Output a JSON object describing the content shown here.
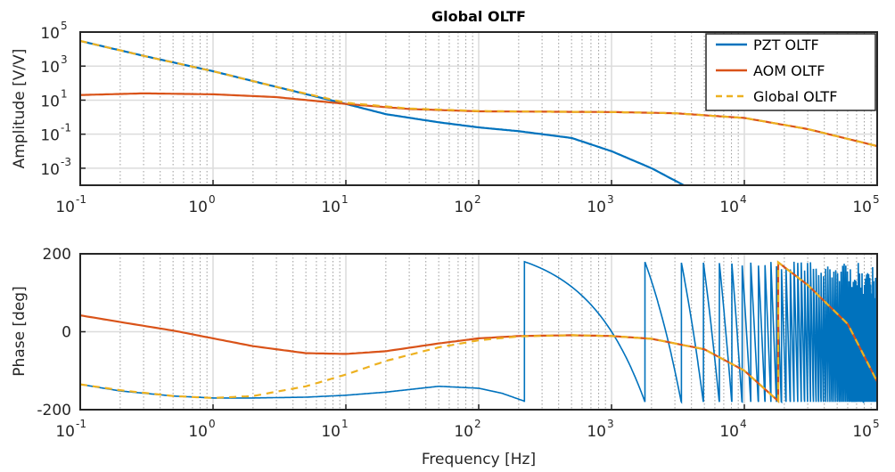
{
  "title": "Global OLTF",
  "colors": {
    "pzt": "#0072BD",
    "aom": "#D95319",
    "global": "#EDB120",
    "grid_major": "#dcdcdc",
    "grid_minor": "#9a9a9a",
    "axis": "#262626"
  },
  "chart_data": [
    {
      "type": "line",
      "name_panel": "amplitude",
      "title": "Global OLTF",
      "ylabel": "Amplitude [V/V]",
      "xlabel": "",
      "xscale": "log",
      "yscale": "log",
      "xlim": [
        0.1,
        100000
      ],
      "ylim": [
        0.0001,
        100000
      ],
      "xticks": [
        {
          "base": "10",
          "exp": "-1"
        },
        {
          "base": "10",
          "exp": "0"
        },
        {
          "base": "10",
          "exp": "1"
        },
        {
          "base": "10",
          "exp": "2"
        },
        {
          "base": "10",
          "exp": "3"
        },
        {
          "base": "10",
          "exp": "4"
        },
        {
          "base": "10",
          "exp": "5"
        }
      ],
      "yticks": [
        {
          "base": "10",
          "exp": "-3"
        },
        {
          "base": "10",
          "exp": "-1"
        },
        {
          "base": "10",
          "exp": "1"
        },
        {
          "base": "10",
          "exp": "3"
        },
        {
          "base": "10",
          "exp": "5"
        }
      ],
      "grid": true,
      "legend": {
        "placement": "top-right",
        "entries": [
          "PZT OLTF",
          "AOM OLTF",
          "Global OLTF"
        ]
      },
      "series": [
        {
          "name": "PZT OLTF",
          "style": "solid",
          "x": [
            0.1,
            0.3,
            1,
            3,
            10,
            20,
            50,
            100,
            200,
            500,
            1000,
            2000,
            3500
          ],
          "y": [
            30000,
            4000,
            500,
            60,
            6,
            1.5,
            0.5,
            0.25,
            0.15,
            0.06,
            0.01,
            0.001,
            0.0001
          ]
        },
        {
          "name": "AOM OLTF",
          "style": "solid",
          "x": [
            0.1,
            0.3,
            1,
            3,
            10,
            30,
            100,
            300,
            1000,
            3000,
            10000,
            30000,
            100000
          ],
          "y": [
            20,
            25,
            22,
            15,
            6,
            3,
            2.2,
            2.1,
            2,
            1.7,
            0.9,
            0.2,
            0.02
          ]
        },
        {
          "name": "Global OLTF",
          "style": "dashed",
          "x": [
            0.1,
            0.3,
            1,
            3,
            10,
            30,
            100,
            300,
            1000,
            3000,
            10000,
            30000,
            100000
          ],
          "y": [
            30000,
            4000,
            500,
            60,
            7,
            3.2,
            2.3,
            2.1,
            2,
            1.7,
            0.9,
            0.2,
            0.02
          ]
        }
      ]
    },
    {
      "type": "line",
      "name_panel": "phase",
      "title": "",
      "ylabel": "Phase [deg]",
      "xlabel": "Frequency [Hz]",
      "xscale": "log",
      "yscale": "linear",
      "xlim": [
        0.1,
        100000
      ],
      "ylim": [
        -200,
        200
      ],
      "xticks": [
        {
          "base": "10",
          "exp": "-1"
        },
        {
          "base": "10",
          "exp": "0"
        },
        {
          "base": "10",
          "exp": "1"
        },
        {
          "base": "10",
          "exp": "2"
        },
        {
          "base": "10",
          "exp": "3"
        },
        {
          "base": "10",
          "exp": "4"
        },
        {
          "base": "10",
          "exp": "5"
        }
      ],
      "yticks": [
        "-200",
        "0",
        "200"
      ],
      "grid": true,
      "series": [
        {
          "name": "PZT OLTF",
          "style": "solid",
          "note_wrapping_phase": "base curve below, then wraps between -180 and 180 above ~220 Hz",
          "x": [
            0.1,
            0.2,
            0.5,
            1,
            2,
            5,
            10,
            20,
            50,
            100,
            150,
            220
          ],
          "y": [
            -135,
            -152,
            -165,
            -170,
            -170,
            -168,
            -163,
            -155,
            -140,
            -145,
            -158,
            -178
          ],
          "wrap_start_hz": 220,
          "wrap_delay_s": 0.00064
        },
        {
          "name": "AOM OLTF",
          "style": "solid",
          "x": [
            0.1,
            0.2,
            0.5,
            1,
            2,
            5,
            10,
            20,
            50,
            100,
            200,
            500,
            1000,
            2000,
            5000,
            10000,
            18000,
            18001,
            30000,
            60000,
            100000
          ],
          "y": [
            42,
            25,
            3,
            -17,
            -37,
            -55,
            -57,
            -50,
            -30,
            -17,
            -11,
            -9,
            -11,
            -18,
            -45,
            -100,
            -178,
            178,
            120,
            20,
            -128
          ]
        },
        {
          "name": "Global OLTF",
          "style": "dashed",
          "x": [
            0.1,
            0.2,
            0.5,
            1,
            2,
            5,
            10,
            20,
            50,
            100,
            200,
            500,
            1000,
            2000,
            5000,
            10000,
            18000,
            18001,
            30000,
            60000,
            100000
          ],
          "y": [
            -135,
            -150,
            -165,
            -170,
            -165,
            -140,
            -110,
            -75,
            -40,
            -22,
            -12,
            -9,
            -11,
            -18,
            -45,
            -100,
            -178,
            178,
            120,
            20,
            -128
          ]
        }
      ]
    }
  ]
}
